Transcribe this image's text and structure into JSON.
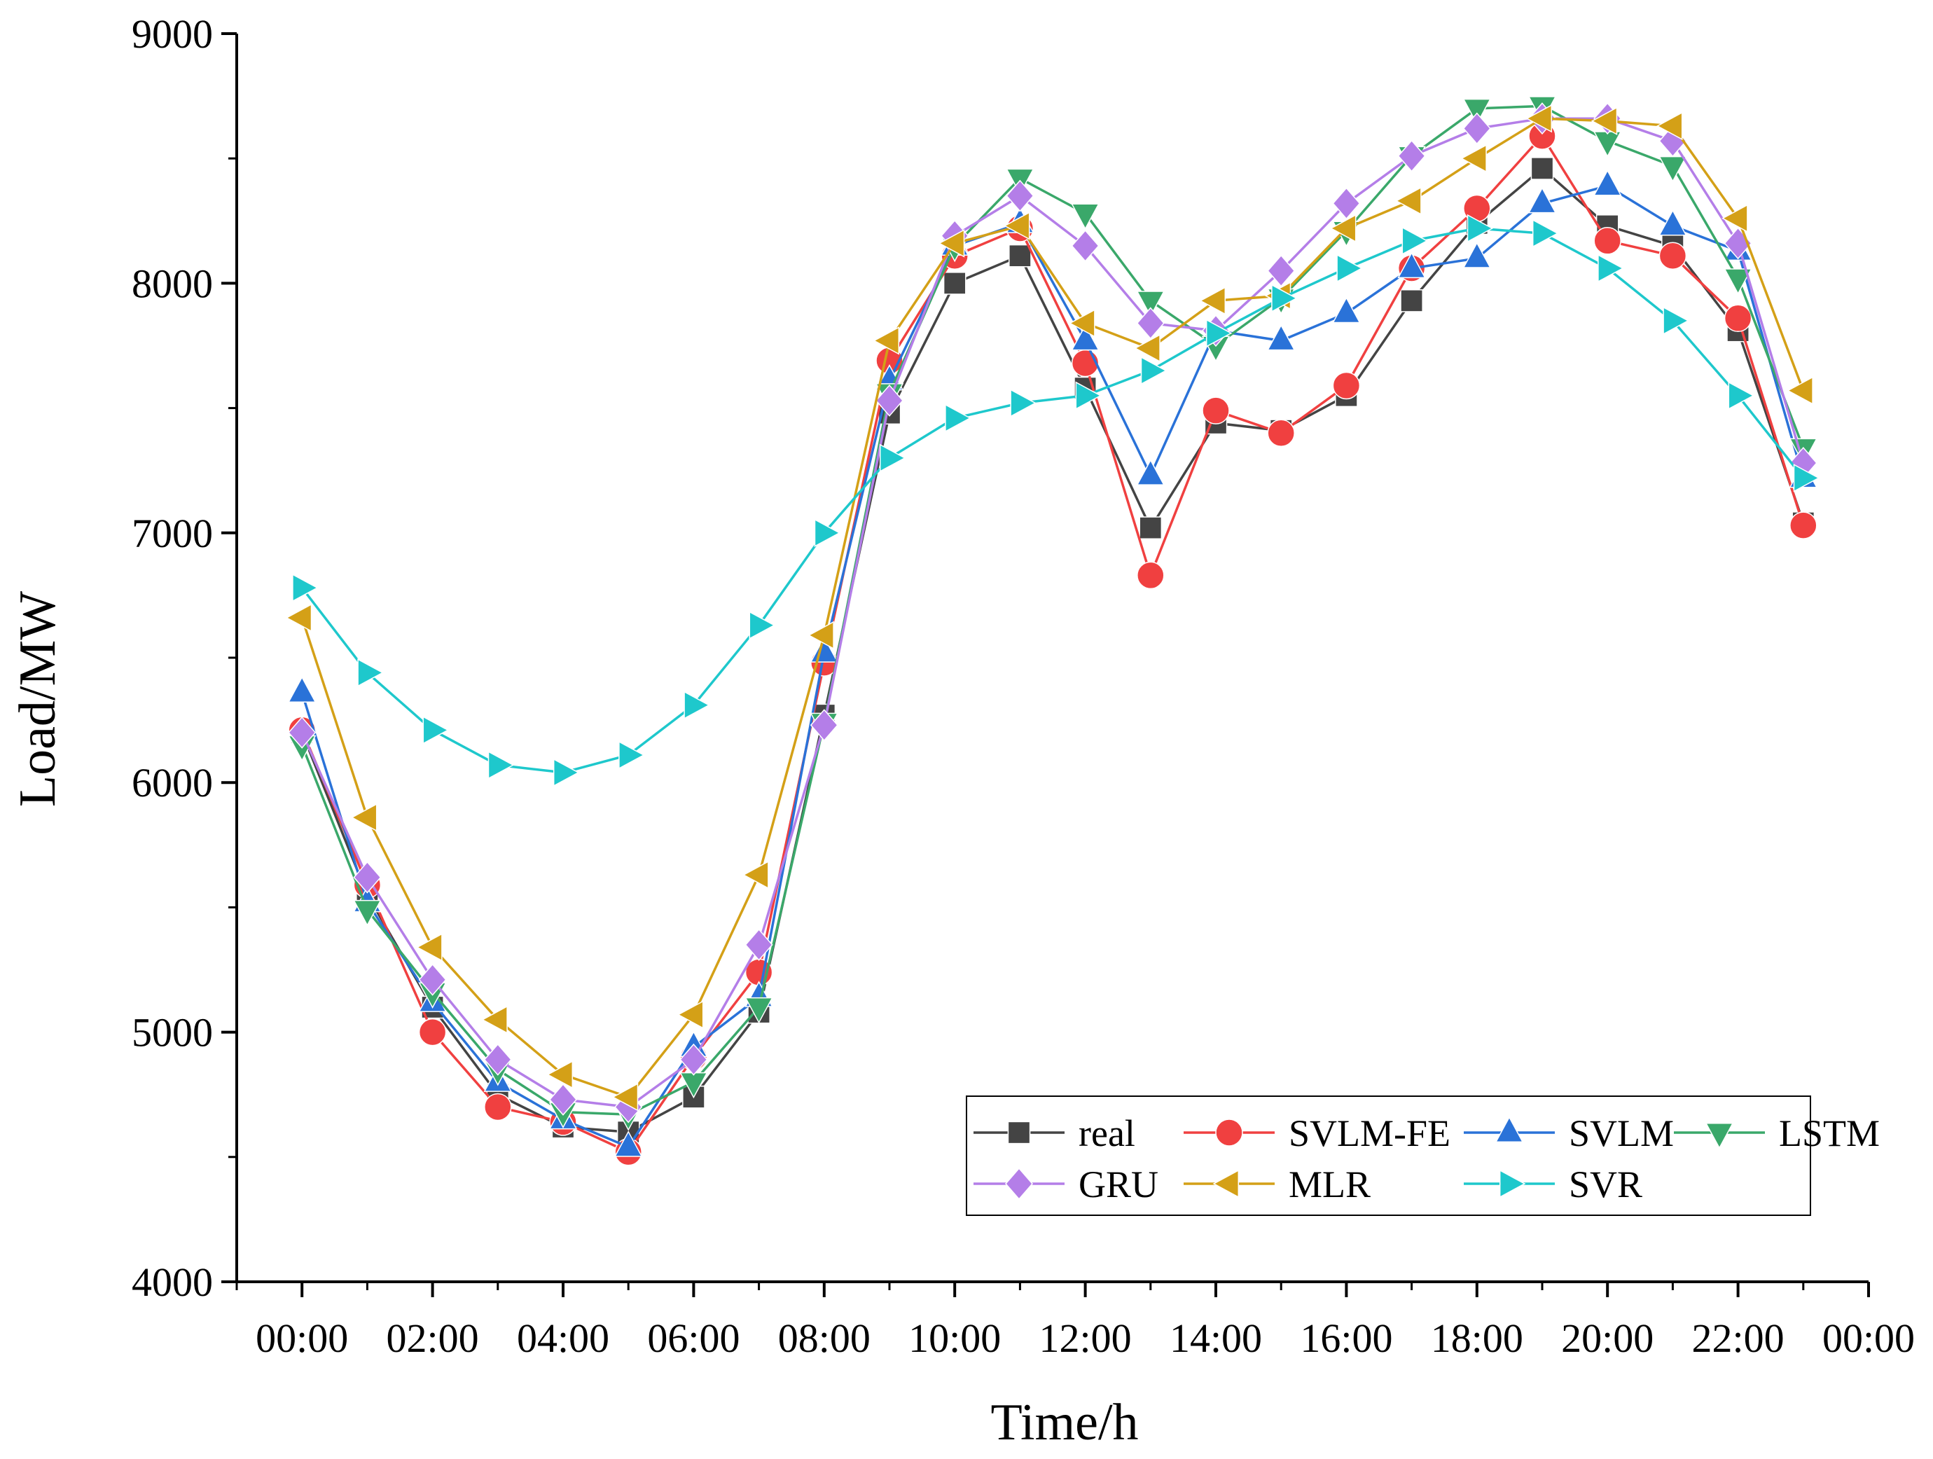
{
  "chart_data": {
    "type": "line",
    "title": "",
    "xlabel": "Time/h",
    "ylabel": "Load/MW",
    "ylim": [
      4000,
      9000
    ],
    "xlim": [
      -1,
      24
    ],
    "y_ticks": [
      "4000",
      "5000",
      "6000",
      "7000",
      "8000",
      "9000"
    ],
    "x_ticks": [
      "00:00",
      "02:00",
      "04:00",
      "06:00",
      "08:00",
      "10:00",
      "12:00",
      "14:00",
      "16:00",
      "18:00",
      "20:00",
      "22:00",
      "00:00"
    ],
    "x": [
      0,
      1,
      2,
      3,
      4,
      5,
      6,
      7,
      8,
      9,
      10,
      11,
      12,
      13,
      14,
      15,
      16,
      17,
      18,
      19,
      20,
      21,
      22,
      23
    ],
    "grid": false,
    "legend_position": "bottom-right",
    "series": [
      {
        "name": "real",
        "color": "#444444",
        "marker": "square",
        "values": [
          6200,
          5550,
          5100,
          4750,
          4620,
          4600,
          4740,
          5080,
          6270,
          7480,
          8000,
          8110,
          7580,
          7020,
          7440,
          7410,
          7550,
          7930,
          8240,
          8460,
          8230,
          8150,
          7810,
          7040
        ]
      },
      {
        "name": "SVLM-FE",
        "color": "#f04040",
        "marker": "circle",
        "values": [
          6210,
          5590,
          5000,
          4700,
          4640,
          4520,
          4900,
          5240,
          6480,
          7690,
          8110,
          8220,
          7680,
          6830,
          7490,
          7400,
          7590,
          8060,
          8300,
          8590,
          8170,
          8110,
          7860,
          7030
        ]
      },
      {
        "name": "SVLM",
        "color": "#2a72d8",
        "marker": "triangle-up",
        "values": [
          6360,
          5520,
          5120,
          4800,
          4650,
          4540,
          4940,
          5140,
          6520,
          7610,
          8150,
          8240,
          7770,
          7230,
          7810,
          7770,
          7880,
          8060,
          8100,
          8320,
          8390,
          8230,
          8130,
          7220
        ]
      },
      {
        "name": "LSTM",
        "color": "#3aa86a",
        "marker": "triangle-down",
        "values": [
          6150,
          5490,
          5160,
          4850,
          4680,
          4670,
          4800,
          5100,
          6240,
          7560,
          8150,
          8420,
          8280,
          7930,
          7750,
          7940,
          8210,
          8510,
          8700,
          8710,
          8570,
          8470,
          8020,
          7340
        ]
      },
      {
        "name": "GRU",
        "color": "#b47ee8",
        "marker": "diamond",
        "values": [
          6200,
          5620,
          5210,
          4890,
          4730,
          4700,
          4890,
          5350,
          6230,
          7530,
          8190,
          8350,
          8150,
          7840,
          7810,
          8050,
          8320,
          8510,
          8620,
          8660,
          8660,
          8570,
          8160,
          7280
        ]
      },
      {
        "name": "MLR",
        "color": "#d4a017",
        "marker": "triangle-left",
        "values": [
          6660,
          5860,
          5340,
          5050,
          4830,
          4740,
          5070,
          5630,
          6590,
          7770,
          8160,
          8230,
          7840,
          7740,
          7930,
          7950,
          8220,
          8330,
          8500,
          8660,
          8650,
          8630,
          8260,
          7570
        ]
      },
      {
        "name": "SVR",
        "color": "#1ec8cc",
        "marker": "triangle-right",
        "values": [
          6780,
          6440,
          6210,
          6070,
          6040,
          6110,
          6310,
          6630,
          7000,
          7300,
          7460,
          7520,
          7550,
          7650,
          7800,
          7940,
          8060,
          8170,
          8220,
          8200,
          8060,
          7850,
          7550,
          7220
        ]
      }
    ]
  }
}
